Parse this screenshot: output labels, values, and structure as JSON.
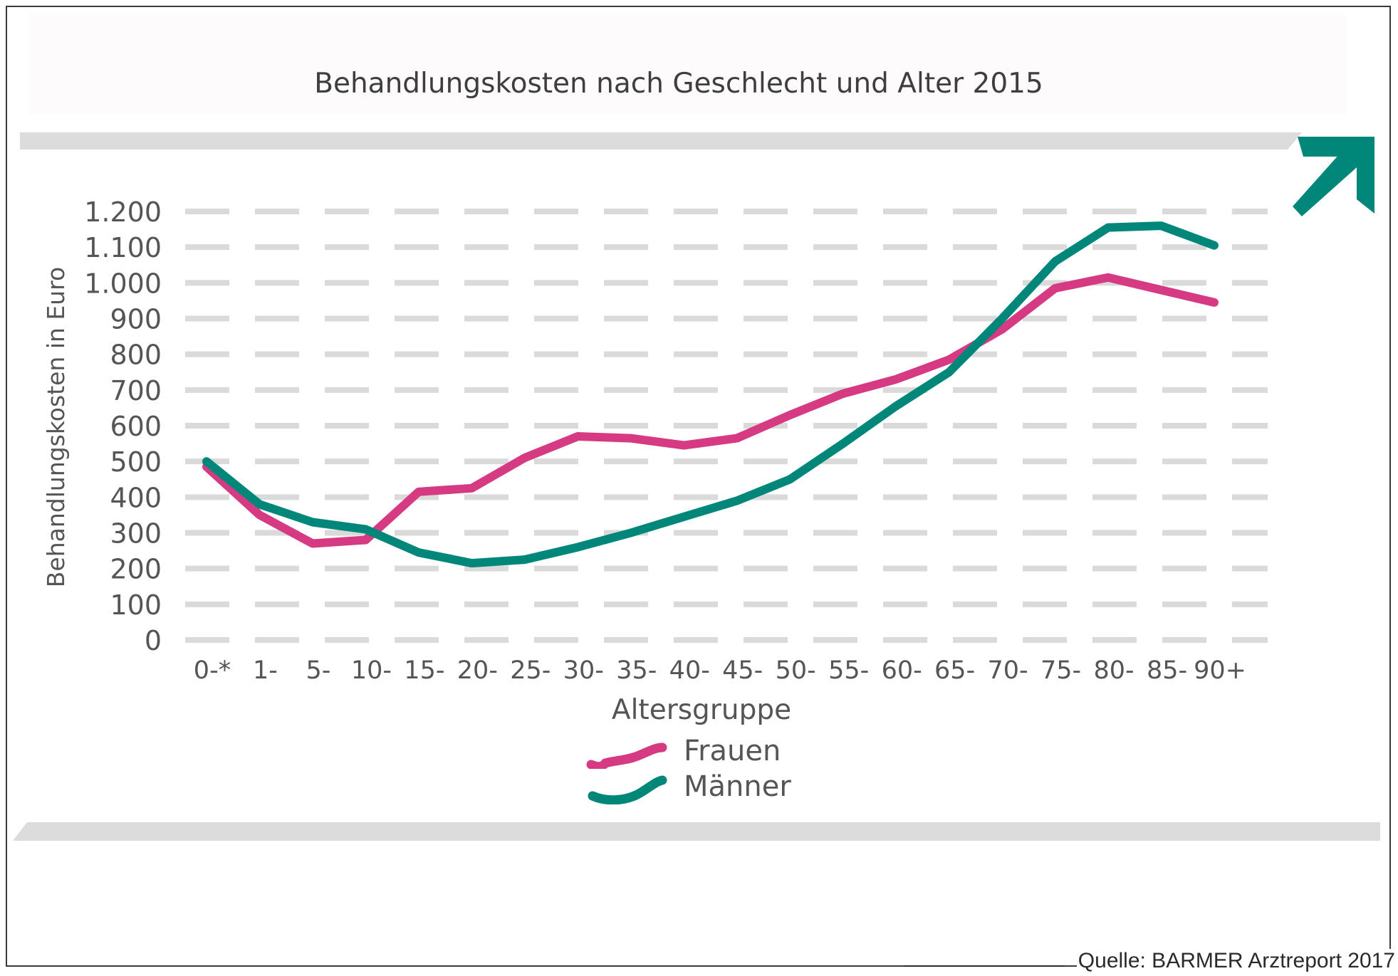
{
  "colors": {
    "frauen": "#d63a82",
    "maenner": "#00877a",
    "grid": "#dadada",
    "text": "#555555",
    "title": "#3e3e3e",
    "band": "#dcdcdc",
    "arrow": "#00877a"
  },
  "decor": {
    "arrow_icon": "arrow-up-right-icon"
  },
  "source": "Quelle: BARMER Arztreport 2017",
  "chart_data": {
    "type": "line",
    "title": "Behandlungskosten nach Geschlecht und Alter 2015",
    "xlabel": "Altersgruppe",
    "ylabel": "Behandlungskosten in Euro",
    "ylim": [
      0,
      1200
    ],
    "yticks": [
      0,
      100,
      200,
      300,
      400,
      500,
      600,
      700,
      800,
      900,
      1000,
      1100,
      1200
    ],
    "ytick_labels": [
      "0",
      "100",
      "200",
      "300",
      "400",
      "500",
      "600",
      "700",
      "800",
      "900",
      "1.000",
      "1.100",
      "1.200"
    ],
    "grid": true,
    "legend_position": "bottom-center",
    "categories": [
      "0-*",
      "1-",
      "5-",
      "10-",
      "15-",
      "20-",
      "25-",
      "30-",
      "35-",
      "40-",
      "45-",
      "50-",
      "55-",
      "60-",
      "65-",
      "70-",
      "75-",
      "80-",
      "85-",
      "90+"
    ],
    "series": [
      {
        "name": "Frauen",
        "color": "#d63a82",
        "values": [
          485,
          350,
          270,
          280,
          415,
          425,
          510,
          570,
          565,
          545,
          565,
          630,
          690,
          730,
          785,
          870,
          985,
          1015,
          980,
          945
        ]
      },
      {
        "name": "Männer",
        "color": "#00877a",
        "values": [
          500,
          380,
          330,
          310,
          245,
          215,
          225,
          260,
          300,
          345,
          390,
          450,
          550,
          655,
          750,
          900,
          1060,
          1155,
          1160,
          1105
        ]
      }
    ]
  }
}
